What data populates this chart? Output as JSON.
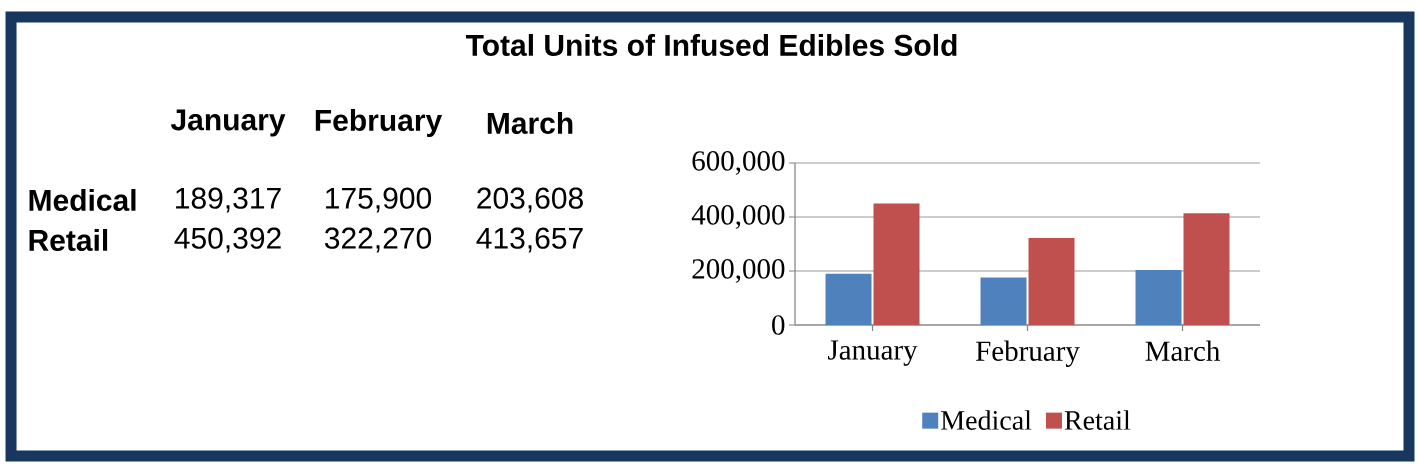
{
  "chart_data": {
    "type": "bar",
    "title": "Total Units of Infused Edibles Sold",
    "categories": [
      "January",
      "February",
      "March"
    ],
    "series": [
      {
        "name": "Medical",
        "color": "#4f81bd",
        "values": [
          189317,
          175900,
          203608
        ]
      },
      {
        "name": "Retail",
        "color": "#c0504d",
        "values": [
          450392,
          322270,
          413657
        ]
      }
    ],
    "annotations": [
      "189,317",
      "175,900",
      "203,608",
      "450,392",
      "322,270",
      "413,657"
    ],
    "ylim": [
      0,
      600000
    ],
    "yticks": [
      0,
      {
        "value": 200000,
        "label": "200,000"
      },
      {
        "value": 400000,
        "label": "400,000"
      },
      {
        "value": 600000,
        "label": "600,000"
      }
    ],
    "grid": "y",
    "legend": "bottom"
  }
}
